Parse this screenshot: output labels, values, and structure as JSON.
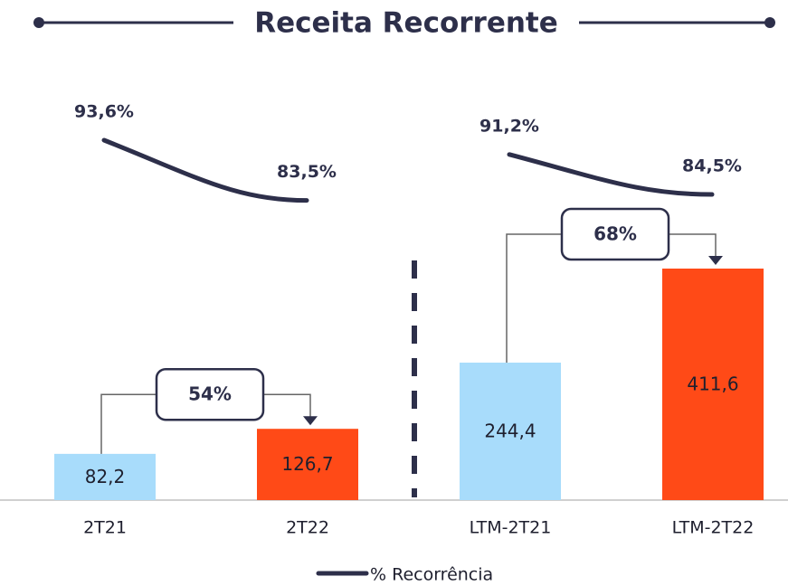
{
  "chart_data": {
    "type": "bar",
    "title": "Receita Recorrente",
    "categories": [
      "2T21",
      "2T22",
      "LTM-2T21",
      "LTM-2T22"
    ],
    "values": [
      82.2,
      126.7,
      244.4,
      411.6
    ],
    "value_labels": [
      "82,2",
      "126,7",
      "244,4",
      "411,6"
    ],
    "colors": [
      "#a8dcfb",
      "#ff4a17",
      "#a8dcfb",
      "#ff4a17"
    ],
    "value_label_colors": [
      "#1e1f2e",
      "#ffffff",
      "#1e1f2e",
      "#ffffff"
    ],
    "series": [
      {
        "name": "% Recorrência",
        "type": "line",
        "color": "#2d2f4a",
        "values": [
          93.6,
          83.5,
          91.2,
          84.5
        ],
        "value_labels": [
          "93,6%",
          "83,5%",
          "91,2%",
          "84,5%"
        ]
      }
    ],
    "growth": {
      "values": [
        54,
        68
      ],
      "value_labels": [
        "54%",
        "68%"
      ]
    }
  }
}
